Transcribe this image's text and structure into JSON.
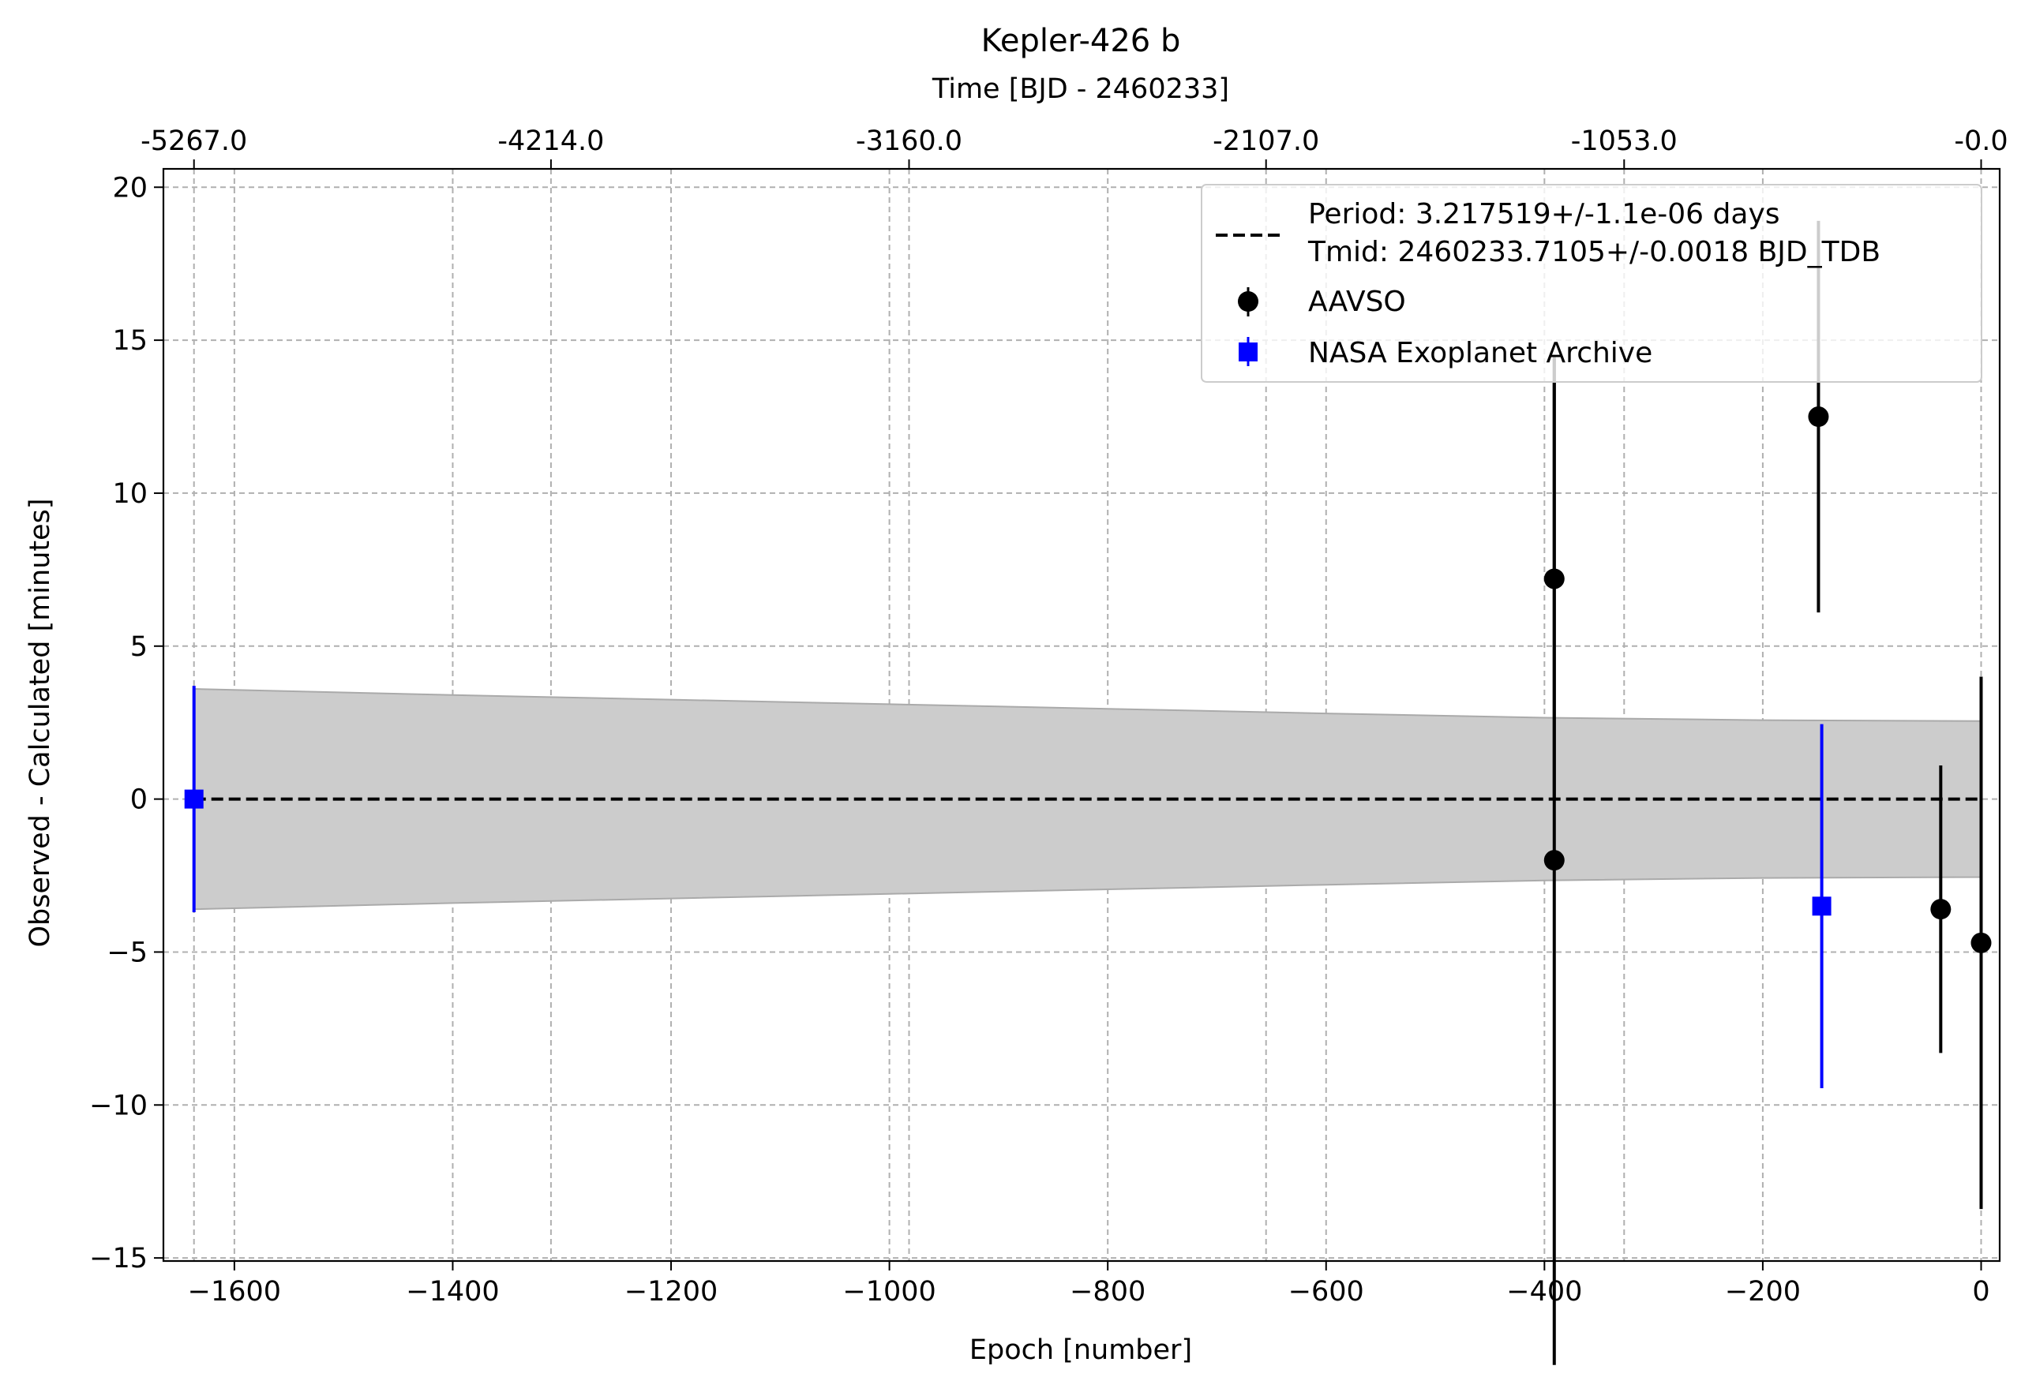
{
  "chart_data": {
    "type": "scatter",
    "title": "Kepler-426 b",
    "xlabel": "Epoch [number]",
    "ylabel": "Observed - Calculated [minutes]",
    "top_xlabel": "Time [BJD - 2460233]",
    "xlim": [
      -1665,
      17
    ],
    "ylim": [
      -15.1,
      20.6
    ],
    "grid": true,
    "legend_position": "top-right",
    "x_ticks": [
      {
        "value": -1600,
        "label": "−1600"
      },
      {
        "value": -1400,
        "label": "−1400"
      },
      {
        "value": -1200,
        "label": "−1200"
      },
      {
        "value": -1000,
        "label": "−1000"
      },
      {
        "value": -800,
        "label": "−800"
      },
      {
        "value": -600,
        "label": "−600"
      },
      {
        "value": -400,
        "label": "−400"
      },
      {
        "value": -200,
        "label": "−200"
      },
      {
        "value": 0,
        "label": "0"
      }
    ],
    "y_ticks": [
      {
        "value": 20,
        "label": "20"
      },
      {
        "value": 15,
        "label": "15"
      },
      {
        "value": 10,
        "label": "10"
      },
      {
        "value": 5,
        "label": "5"
      },
      {
        "value": 0,
        "label": "0"
      },
      {
        "value": -5,
        "label": "−5"
      },
      {
        "value": -10,
        "label": "−10"
      },
      {
        "value": -15,
        "label": "−15"
      }
    ],
    "top_ticks": [
      {
        "value": -1637,
        "label": "-5267.0"
      },
      {
        "value": -1310,
        "label": "-4214.0"
      },
      {
        "value": -982,
        "label": "-3160.0"
      },
      {
        "value": -655,
        "label": "-2107.0"
      },
      {
        "value": -327,
        "label": "-1053.0"
      },
      {
        "value": 0,
        "label": "-0.0"
      }
    ],
    "fit_line": {
      "label_line1": "Period: 3.217519+/-1.1e-06 days",
      "label_line2": "Tmid: 2460233.7105+/-0.0018 BJD_TDB",
      "x": [
        -1637,
        0
      ],
      "y": [
        0,
        0
      ],
      "color": "#000000"
    },
    "uncertainty_band": {
      "x": [
        -1637,
        -1400,
        -1200,
        -1000,
        -800,
        -600,
        -400,
        -200,
        0
      ],
      "upper": [
        3.6,
        3.4,
        3.25,
        3.1,
        2.95,
        2.8,
        2.66,
        2.58,
        2.55
      ],
      "lower": [
        -3.6,
        -3.4,
        -3.25,
        -3.1,
        -2.95,
        -2.8,
        -2.66,
        -2.58,
        -2.55
      ],
      "color": "#cccccc"
    },
    "series": [
      {
        "name": "AAVSO",
        "marker": "circle",
        "color": "#000000",
        "points": [
          {
            "x": -391,
            "y": 7.2,
            "yerr": 7.2
          },
          {
            "x": -391,
            "y": -2.0,
            "yerr": 16.5
          },
          {
            "x": -149,
            "y": 12.5,
            "yerr": 6.4
          },
          {
            "x": -37,
            "y": -3.6,
            "yerr": 4.7
          },
          {
            "x": 0,
            "y": -4.7,
            "yerr": 8.7
          }
        ]
      },
      {
        "name": "NASA Exoplanet Archive",
        "marker": "square",
        "color": "#0000ff",
        "points": [
          {
            "x": -1637,
            "y": 0.0,
            "yerr": 3.7
          },
          {
            "x": -146,
            "y": -3.5,
            "yerr": 5.95
          }
        ]
      }
    ]
  }
}
